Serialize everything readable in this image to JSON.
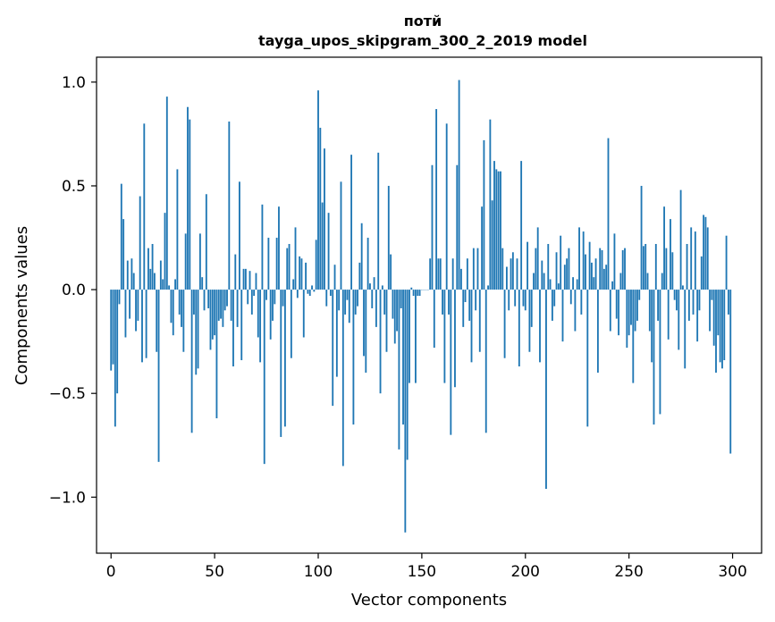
{
  "chart_data": {
    "type": "bar",
    "title": "потй",
    "subtitle": "tayga_upos_skipgram_300_2_2019 model",
    "xlabel": "Vector components",
    "ylabel": "Components values",
    "xlim": [
      -7,
      314
    ],
    "ylim": [
      -1.27,
      1.12
    ],
    "xticks": [
      0,
      50,
      100,
      150,
      200,
      250,
      300
    ],
    "yticks": [
      -1.0,
      -0.5,
      0.0,
      0.5,
      1.0
    ],
    "ytick_labels": [
      "−1.0",
      "−0.5",
      "0.0",
      "0.5",
      "1.0"
    ],
    "bar_color": "#1f77b4",
    "values": [
      -0.39,
      -0.36,
      -0.66,
      -0.5,
      -0.07,
      0.51,
      0.34,
      -0.23,
      0.14,
      -0.14,
      0.15,
      0.08,
      -0.2,
      -0.15,
      0.45,
      -0.35,
      0.8,
      -0.33,
      0.2,
      0.1,
      0.22,
      0.08,
      -0.3,
      -0.83,
      0.14,
      0.05,
      0.37,
      0.93,
      0.02,
      -0.16,
      -0.22,
      0.05,
      0.58,
      -0.12,
      -0.18,
      -0.3,
      0.27,
      0.88,
      0.82,
      -0.69,
      -0.12,
      -0.41,
      -0.38,
      0.27,
      0.06,
      -0.1,
      0.46,
      -0.09,
      -0.29,
      -0.24,
      -0.22,
      -0.62,
      -0.15,
      -0.14,
      -0.18,
      -0.1,
      -0.08,
      0.81,
      -0.15,
      -0.37,
      0.17,
      -0.18,
      0.52,
      -0.34,
      0.1,
      0.1,
      -0.07,
      0.09,
      -0.12,
      -0.03,
      0.08,
      -0.23,
      -0.35,
      0.41,
      -0.84,
      -0.05,
      0.25,
      -0.24,
      -0.15,
      -0.07,
      0.25,
      0.4,
      -0.71,
      -0.08,
      -0.66,
      0.2,
      0.22,
      -0.33,
      0.05,
      0.3,
      -0.04,
      0.16,
      0.15,
      -0.23,
      0.13,
      -0.02,
      -0.03,
      0.02,
      -0.01,
      0.24,
      0.96,
      0.78,
      0.42,
      0.68,
      -0.08,
      0.37,
      -0.03,
      -0.56,
      0.12,
      -0.42,
      -0.1,
      0.52,
      -0.85,
      -0.12,
      -0.05,
      -0.16,
      0.65,
      -0.65,
      -0.12,
      -0.08,
      0.13,
      0.32,
      -0.32,
      -0.4,
      0.25,
      0.03,
      -0.09,
      0.06,
      -0.18,
      0.66,
      -0.5,
      0.02,
      -0.12,
      -0.3,
      0.5,
      0.17,
      -0.14,
      -0.26,
      -0.2,
      -0.77,
      -0.09,
      -0.65,
      -1.17,
      -0.82,
      -0.45,
      0.01,
      -0.03,
      -0.45,
      -0.03,
      -0.03,
      0.0,
      0.0,
      0.0,
      0.0,
      0.15,
      0.6,
      -0.28,
      0.87,
      0.15,
      0.15,
      -0.12,
      -0.45,
      0.8,
      -0.12,
      -0.7,
      0.15,
      -0.47,
      0.6,
      1.01,
      0.1,
      -0.18,
      -0.06,
      0.15,
      -0.15,
      -0.35,
      0.2,
      -0.1,
      0.2,
      -0.3,
      0.4,
      0.72,
      -0.69,
      0.02,
      0.82,
      0.43,
      0.62,
      0.58,
      0.57,
      0.57,
      0.2,
      -0.33,
      0.11,
      -0.1,
      0.15,
      0.18,
      -0.08,
      0.15,
      -0.37,
      0.62,
      -0.08,
      -0.1,
      0.23,
      -0.3,
      -0.18,
      0.08,
      0.2,
      0.3,
      -0.35,
      0.14,
      0.08,
      -0.96,
      0.22,
      0.05,
      -0.15,
      -0.08,
      0.18,
      0.03,
      0.26,
      -0.25,
      0.12,
      0.15,
      0.2,
      -0.07,
      0.06,
      -0.2,
      0.05,
      0.3,
      -0.12,
      0.28,
      0.17,
      -0.66,
      0.23,
      0.13,
      0.06,
      0.15,
      -0.4,
      0.2,
      0.19,
      0.1,
      0.12,
      0.73,
      -0.2,
      0.04,
      0.27,
      -0.14,
      -0.22,
      0.08,
      0.19,
      0.2,
      -0.28,
      -0.22,
      -0.17,
      -0.45,
      -0.2,
      -0.15,
      -0.05,
      0.5,
      0.21,
      0.22,
      0.08,
      -0.2,
      -0.35,
      -0.65,
      0.22,
      -0.15,
      -0.6,
      0.08,
      0.4,
      0.2,
      -0.24,
      0.34,
      0.18,
      -0.05,
      -0.1,
      -0.29,
      0.48,
      0.02,
      -0.38,
      0.22,
      -0.15,
      0.3,
      -0.12,
      0.28,
      -0.25,
      -0.1,
      0.16,
      0.36,
      0.35,
      0.3,
      -0.2,
      -0.05,
      -0.27,
      -0.4,
      -0.22,
      -0.35,
      -0.38,
      -0.34,
      0.26,
      -0.12,
      -0.79
    ]
  }
}
